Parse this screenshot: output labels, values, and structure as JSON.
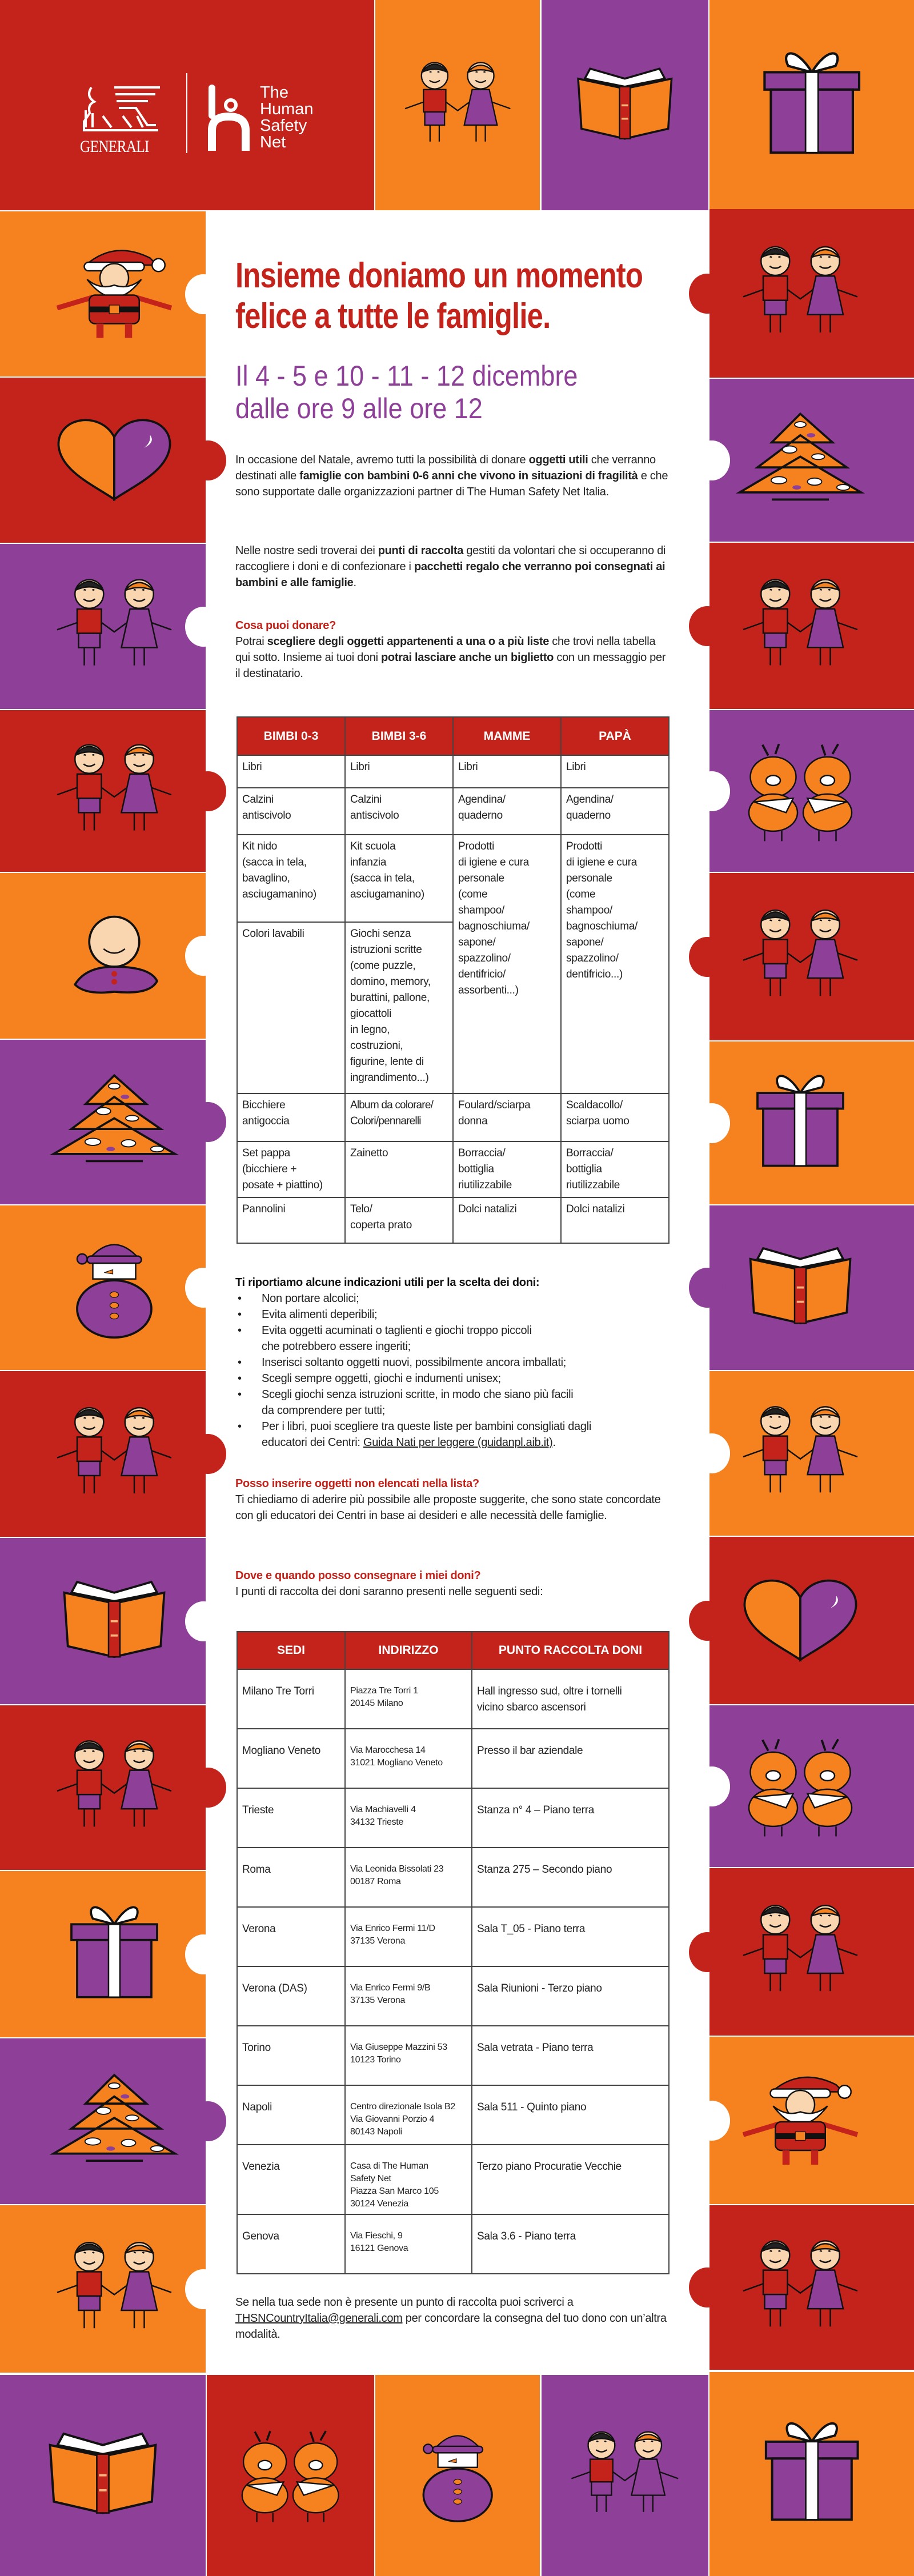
{
  "colors": {
    "red": "#C4231C",
    "orange": "#F5821F",
    "purple": "#8E3F98"
  },
  "header": {
    "generali_logo": "GENERALI",
    "thsn_logo": [
      "The",
      "Human",
      "Safety",
      "Net"
    ]
  },
  "decor": {
    "header_tiles": [
      {
        "color": "orange",
        "icon": "kids"
      },
      {
        "color": "purple",
        "icon": "book"
      },
      {
        "color": "orange",
        "icon": "gift"
      }
    ],
    "left_tiles": [
      {
        "color": "orange",
        "icon": "santa"
      },
      {
        "color": "red",
        "icon": "heart"
      },
      {
        "color": "purple",
        "icon": "kids"
      },
      {
        "color": "red",
        "icon": "kids"
      },
      {
        "color": "orange",
        "icon": "baby"
      },
      {
        "color": "purple",
        "icon": "tree"
      },
      {
        "color": "orange",
        "icon": "snowman"
      },
      {
        "color": "red",
        "icon": "kids"
      },
      {
        "color": "purple",
        "icon": "book"
      },
      {
        "color": "red",
        "icon": "kids"
      },
      {
        "color": "orange",
        "icon": "gift"
      },
      {
        "color": "purple",
        "icon": "tree"
      },
      {
        "color": "orange",
        "icon": "kids"
      }
    ],
    "right_tiles": [
      {
        "color": "red",
        "icon": "kids"
      },
      {
        "color": "purple",
        "icon": "tree"
      },
      {
        "color": "red",
        "icon": "kids"
      },
      {
        "color": "purple",
        "icon": "reindeer"
      },
      {
        "color": "red",
        "icon": "kids"
      },
      {
        "color": "orange",
        "icon": "gift"
      },
      {
        "color": "purple",
        "icon": "book"
      },
      {
        "color": "orange",
        "icon": "kids"
      },
      {
        "color": "red",
        "icon": "heart"
      },
      {
        "color": "purple",
        "icon": "reindeer"
      },
      {
        "color": "red",
        "icon": "kids"
      },
      {
        "color": "orange",
        "icon": "santa"
      },
      {
        "color": "red",
        "icon": "kids"
      }
    ],
    "bottom_tiles": [
      {
        "color": "purple",
        "icon": "book"
      },
      {
        "color": "red",
        "icon": "reindeer"
      },
      {
        "color": "orange",
        "icon": "snowman"
      },
      {
        "color": "purple",
        "icon": "kids"
      },
      {
        "color": "orange",
        "icon": "gift"
      }
    ]
  },
  "title": [
    "Insieme doniamo un momento",
    "felice a tutte le famiglie."
  ],
  "dates": [
    "Il 4 - 5 e 10 - 11 - 12 dicembre",
    "dalle ore 9 alle ore 12"
  ],
  "intro": {
    "p1": [
      "In occasione del Natale, avremo tutti la possibilità di donare ",
      "oggetti utili",
      " che verranno destinati alle ",
      "famiglie con bambini 0-6 anni che vivono in situazioni di fragilità",
      " e che sono supportate dalle organizzazioni partner di The Human Safety Net Italia."
    ],
    "p2": [
      "Nelle nostre sedi troverai dei ",
      "punti di raccolta",
      " gestiti da volontari che si occuperanno di raccogliere i doni e di confezionare i ",
      "pacchetti regalo che verranno poi consegnati ai bambini e alle famiglie",
      "."
    ]
  },
  "what": {
    "heading": "Cosa puoi donare?",
    "text": [
      "Potrai ",
      "scegliere degli oggetti appartenenti a una o a più liste",
      " che trovi nella tabella qui sotto. Insieme ai tuoi doni ",
      "potrai lasciare anche un biglietto",
      " con un messaggio per il destinatario."
    ]
  },
  "gift_table": {
    "headers": [
      "BIMBI 0-3",
      "BIMBI 3-6",
      "MAMME",
      "PAPÀ"
    ],
    "rows": [
      [
        "Libri",
        "Libri",
        "Libri",
        "Libri"
      ],
      [
        "Calzini\nantiscivolo",
        "Calzini\nantiscivolo",
        "Agendina/\nquaderno",
        "Agendina/\nquaderno"
      ],
      [
        "Kit nido\n(sacca in tela,\nbavaglino,\nasciugamanino)",
        "Kit scuola\ninfanzia\n(sacca in tela,\nasciugamanino)",
        "Prodotti\ndi igiene e cura\npersonale\n(come\nshampoo/\nbagnoschiuma/\nsapone/\nspazzolino/\ndentifricio/\nassorbenti...)",
        "Prodotti\ndi igiene e cura\npersonale\n(come\nshampoo/\nbagnoschiuma/\nsapone/\nspazzolino/\ndentifricio...)"
      ],
      [
        "Colori lavabili",
        "Giochi senza\nistruzioni scritte\n(come puzzle,\ndomino, memory,\nburattini, pallone,\ngiocattoli\nin legno,\ncostruzioni,\nfigurine, lente di\ningrandimento...)"
      ],
      [
        "Bicchiere\nantigoccia",
        "Album da colorare/\nColori/pennarelli",
        "Foulard/sciarpa\ndonna",
        "Scaldacollo/\nsciarpa uomo"
      ],
      [
        "Set pappa\n(bicchiere +\nposate + piattino)",
        "Zainetto",
        "Borraccia/\nbottiglia\nriutilizzabile",
        "Borraccia/\nbottiglia\nriutilizzabile"
      ],
      [
        "Pannolini",
        "Telo/\ncoperta prato",
        "Dolci natalizi",
        "Dolci natalizi"
      ]
    ]
  },
  "tips": {
    "heading": "Ti riportiamo alcune indicazioni utili per la scelta dei doni:",
    "items": [
      "Non portare alcolici;",
      "Evita alimenti deperibili;",
      "Evita oggetti acuminati o taglienti e giochi troppo piccoli\nche potrebbero essere ingeriti;",
      "Inserisci soltanto oggetti nuovi, possibilmente ancora imballati;",
      "Scegli sempre oggetti, giochi e indumenti unisex;",
      "Scegli giochi senza istruzioni scritte, in modo che siano più facili\nda comprendere per tutti;",
      "Per i libri, puoi scegliere tra queste liste per bambini consigliati dagli\neducatori dei Centri: "
    ],
    "link": "Guida Nati per leggere (guidanpl.aib.it)",
    "link_suffix": "."
  },
  "other_items": {
    "heading": "Posso inserire oggetti non elencati nella lista?",
    "text": "Ti chiediamo di aderire più possibile alle proposte suggerite, che sono state concordate con gli educatori dei Centri in base ai desideri e alle necessità delle famiglie."
  },
  "where": {
    "heading": "Dove e quando posso consegnare i miei doni?",
    "text": "I punti di raccolta dei doni saranno presenti nelle seguenti sedi:"
  },
  "points_table": {
    "headers": [
      "SEDI",
      "INDIRIZZO",
      "PUNTO RACCOLTA DONI"
    ],
    "rows": [
      [
        "Milano Tre Torri",
        "Piazza Tre Torri 1\n20145 Milano",
        "Hall ingresso sud, oltre i tornelli\nvicino sbarco ascensori"
      ],
      [
        "Mogliano Veneto",
        "Via Marocchesa 14\n31021 Mogliano Veneto",
        "Presso il bar aziendale"
      ],
      [
        "Trieste",
        "Via Machiavelli 4\n34132 Trieste",
        "Stanza n° 4 – Piano terra"
      ],
      [
        "Roma",
        "Via Leonida Bissolati 23\n00187 Roma",
        "Stanza 275 – Secondo piano"
      ],
      [
        "Verona",
        "Via Enrico Fermi 11/D\n37135 Verona",
        "Sala T_05 - Piano terra"
      ],
      [
        "Verona (DAS)",
        "Via Enrico Fermi 9/B\n37135 Verona",
        "Sala Riunioni - Terzo piano"
      ],
      [
        "Torino",
        "Via Giuseppe Mazzini 53\n10123 Torino",
        "Sala vetrata - Piano terra"
      ],
      [
        "Napoli",
        "Centro direzionale Isola B2\nVia Giovanni Porzio 4\n80143 Napoli",
        "Sala 511 - Quinto piano"
      ],
      [
        "Venezia",
        "Casa di The Human\nSafety Net\nPiazza San Marco 105\n30124 Venezia",
        "Terzo piano Procuratie Vecchie"
      ],
      [
        "Genova",
        "Via Fieschi, 9\n16121 Genova",
        "Sala 3.6 - Piano terra"
      ]
    ]
  },
  "footer": {
    "text_before": "Se nella tua sede non è presente un punto di raccolta puoi scriverci a ",
    "email": "THSNCountryItalia@generali.com",
    "text_after": " per concordare la consegna del tuo dono con un’altra modalità."
  }
}
